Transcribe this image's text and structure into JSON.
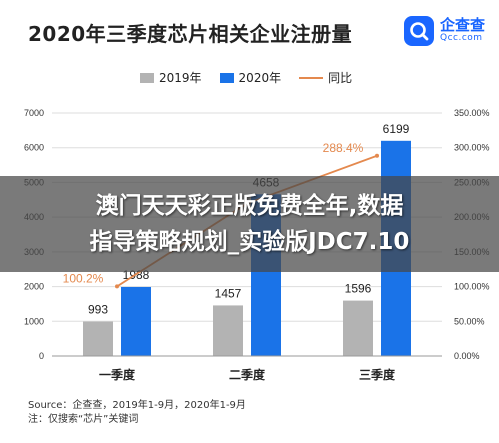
{
  "header": {
    "title": "2020年三季度芯片相关企业注册量"
  },
  "brand": {
    "name": "企查查",
    "domain": "Qcc.com",
    "icon": "qcc-logo-icon",
    "color": "#1a66ff"
  },
  "legend": {
    "items": [
      "2019年",
      "2020年",
      "同比"
    ]
  },
  "chart_data": {
    "type": "bar",
    "categories": [
      "一季度",
      "二季度",
      "三季度"
    ],
    "series": [
      {
        "name": "2019年",
        "values": [
          993,
          1457,
          1596
        ],
        "color": "#b3b3b3"
      },
      {
        "name": "2020年",
        "values": [
          1988,
          4658,
          6199
        ],
        "color": "#1a73e8"
      }
    ],
    "line_series": {
      "name": "同比",
      "values": [
        100.2,
        219.7,
        288.4
      ],
      "labels": [
        "100.2%",
        "",
        "288.4%"
      ],
      "color": "#e4894e"
    },
    "ylim": [
      0,
      7000
    ],
    "yticks": [
      "0",
      "1000",
      "2000",
      "3000",
      "4000",
      "5000",
      "6000",
      "7000"
    ],
    "y2lim": [
      0,
      350
    ],
    "y2ticks": [
      "0.00%",
      "50.00%",
      "100.00%",
      "150.00%",
      "200.00%",
      "250.00%",
      "300.00%",
      "350.00%"
    ],
    "grid": true
  },
  "footer": {
    "source": "Source：企查查，2019年1-9月，2020年1-9月",
    "note": "注：仅搜索“芯片”关键词"
  },
  "overlay": {
    "line1": "澳门天天彩正版免费全年,数据",
    "line2": "指导策略规划_实验版JDC7.10"
  }
}
